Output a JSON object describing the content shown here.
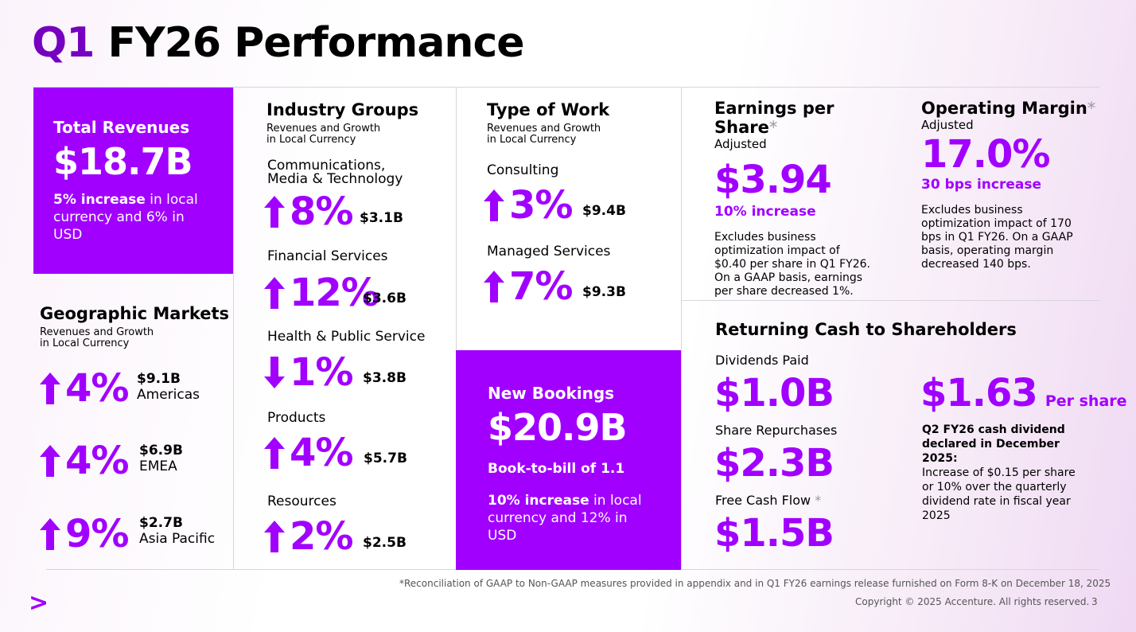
{
  "header": {
    "q": "Q1",
    "title": "FY26 Performance"
  },
  "total_revenues": {
    "label": "Total Revenues",
    "value": "$18.7B",
    "bold": "5% increase",
    "rest": " in local currency and 6% in USD"
  },
  "geographic": {
    "title": "Geographic Markets",
    "subtitle1": "Revenues and Growth",
    "subtitle2": "in Local Currency",
    "items": [
      {
        "pct": "4%",
        "amount": "$9.1B",
        "name": "Americas",
        "dir": "up"
      },
      {
        "pct": "4%",
        "amount": "$6.9B",
        "name": "EMEA",
        "dir": "up"
      },
      {
        "pct": "9%",
        "amount": "$2.7B",
        "name": "Asia Pacific",
        "dir": "up"
      }
    ]
  },
  "industry": {
    "title": "Industry Groups",
    "subtitle1": "Revenues and Growth",
    "subtitle2": "in Local Currency",
    "items": [
      {
        "name1": "Communications,",
        "name2": "Media & Technology",
        "pct": "8%",
        "amount": "$3.1B",
        "dir": "up"
      },
      {
        "name1": "Financial Services",
        "pct": "12%",
        "amount": "$3.6B",
        "dir": "up"
      },
      {
        "name1": "Health & Public Service",
        "pct": "1%",
        "amount": "$3.8B",
        "dir": "down"
      },
      {
        "name1": "Products",
        "pct": "4%",
        "amount": "$5.7B",
        "dir": "up"
      },
      {
        "name1": "Resources",
        "pct": "2%",
        "amount": "$2.5B",
        "dir": "up"
      }
    ]
  },
  "work": {
    "title": "Type of Work",
    "subtitle1": "Revenues and Growth",
    "subtitle2": "in Local Currency",
    "items": [
      {
        "name": "Consulting",
        "pct": "3%",
        "amount": "$9.4B",
        "dir": "up"
      },
      {
        "name": "Managed Services",
        "pct": "7%",
        "amount": "$9.3B",
        "dir": "up"
      }
    ]
  },
  "bookings": {
    "label": "New Bookings",
    "value": "$20.9B",
    "btb": "Book-to-bill of 1.1",
    "bold": "10% increase",
    "rest": " in local currency and 12% in USD"
  },
  "eps": {
    "title": "Earnings per Share",
    "asterisk": "*",
    "adj": "Adjusted",
    "value": "$3.94",
    "increase": "10% increase",
    "note": "Excludes business optimization impact of $0.40 per share in Q1 FY26. On a GAAP basis, earnings per share decreased 1%."
  },
  "margin": {
    "title": "Operating Margin",
    "asterisk": "*",
    "adj": "Adjusted",
    "value": "17.0%",
    "increase": "30 bps increase",
    "note": "Excludes business optimization impact of 170 bps in Q1 FY26. On a GAAP basis, operating margin decreased 140 bps."
  },
  "cash": {
    "title": "Returning Cash to Shareholders",
    "dividends_label": "Dividends Paid",
    "dividends_value": "$1.0B",
    "repurchase_label": "Share Repurchases",
    "repurchase_value": "$2.3B",
    "fcf_label": "Free Cash Flow",
    "fcf_asterisk": "*",
    "fcf_value": "$1.5B",
    "per_share_value": "$1.63",
    "per_share_label": "Per share",
    "declared": "Q2 FY26 cash dividend declared in December 2025:",
    "declared_note": "Increase of $0.15 per share or 10% over the quarterly dividend rate in fiscal year 2025"
  },
  "footer": {
    "footnote": "*Reconciliation of GAAP to Non-GAAP measures provided in appendix and in Q1 FY26 earnings release furnished on Form 8-K on December 18, 2025",
    "copyright": "Copyright © 2025 Accenture. All rights reserved.",
    "page": "3",
    "logo": ">"
  },
  "colors": {
    "accent": "#a100ff",
    "dark_accent": "#7500c0"
  }
}
